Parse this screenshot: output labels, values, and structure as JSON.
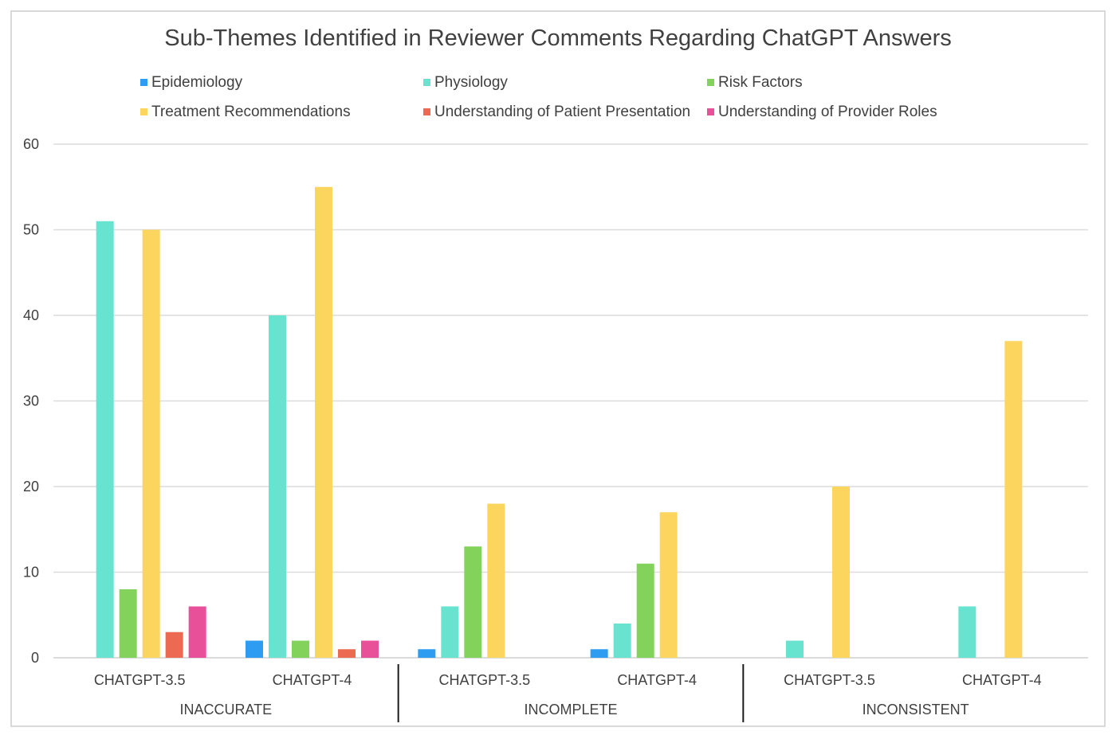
{
  "chart_data": {
    "type": "bar",
    "title": "Sub-Themes Identified in Reviewer Comments Regarding ChatGPT Answers",
    "groups": [
      {
        "label": "INACCURATE",
        "categories": [
          "CHATGPT-3.5",
          "CHATGPT-4"
        ]
      },
      {
        "label": "INCOMPLETE",
        "categories": [
          "CHATGPT-3.5",
          "CHATGPT-4"
        ]
      },
      {
        "label": "INCONSISTENT",
        "categories": [
          "CHATGPT-3.5",
          "CHATGPT-4"
        ]
      }
    ],
    "categories": [
      "CHATGPT-3.5",
      "CHATGPT-4",
      "CHATGPT-3.5",
      "CHATGPT-4",
      "CHATGPT-3.5",
      "CHATGPT-4"
    ],
    "series": [
      {
        "name": "Epidemiology",
        "color": "#2e9cf0",
        "values": [
          0,
          2,
          1,
          1,
          0,
          0
        ]
      },
      {
        "name": "Physiology",
        "color": "#68e3cf",
        "values": [
          51,
          40,
          6,
          4,
          2,
          6
        ]
      },
      {
        "name": "Risk Factors",
        "color": "#83d25c",
        "values": [
          8,
          2,
          13,
          11,
          0,
          0
        ]
      },
      {
        "name": "Treatment Recommendations",
        "color": "#fcd55f",
        "values": [
          50,
          55,
          18,
          17,
          20,
          37
        ]
      },
      {
        "name": "Understanding of Patient Presentation",
        "color": "#ec6a52",
        "values": [
          3,
          1,
          0,
          0,
          0,
          0
        ]
      },
      {
        "name": "Understanding of Provider Roles",
        "color": "#e9509a",
        "values": [
          6,
          2,
          0,
          0,
          0,
          0
        ]
      }
    ],
    "yticks": [
      "0",
      "10",
      "20",
      "30",
      "40",
      "50",
      "60"
    ],
    "ylim": [
      0,
      60
    ],
    "grid": true,
    "legend_position": "top"
  }
}
